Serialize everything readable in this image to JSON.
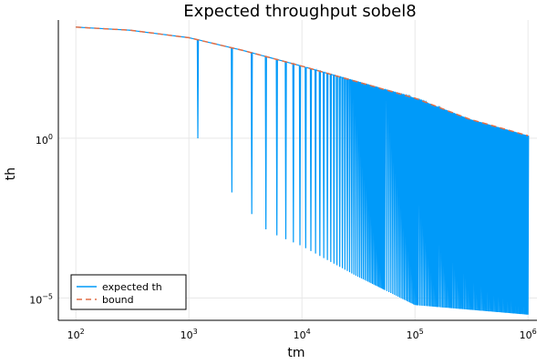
{
  "chart_data": {
    "type": "line",
    "title": "Expected throughput sobel8",
    "xlabel": "tm",
    "ylabel": "th",
    "x_scale": "log10",
    "y_scale": "log10",
    "xlim": [
      70,
      1200000
    ],
    "ylim": [
      2e-06,
      5000
    ],
    "x_ticks": [
      {
        "value": 100,
        "base": "10",
        "exp": "2"
      },
      {
        "value": 1000,
        "base": "10",
        "exp": "3"
      },
      {
        "value": 10000,
        "base": "10",
        "exp": "4"
      },
      {
        "value": 100000,
        "base": "10",
        "exp": "5"
      },
      {
        "value": 1000000,
        "base": "10",
        "exp": "6"
      }
    ],
    "y_ticks": [
      {
        "value": 1,
        "base": "10",
        "exp": "0"
      },
      {
        "value": 1e-05,
        "base": "10",
        "exp": "−5"
      }
    ],
    "grid": true,
    "legend_position": "bottom-left",
    "series": [
      {
        "name": "expected th",
        "color": "#009af9",
        "style": "solid",
        "envelope": [
          [
            100,
            3000
          ],
          [
            300,
            2400
          ],
          [
            1000,
            1400
          ],
          [
            3000,
            560
          ],
          [
            10000,
            180
          ],
          [
            30000,
            60
          ],
          [
            100000,
            18
          ],
          [
            300000,
            4
          ],
          [
            1000000,
            1.2
          ]
        ],
        "spike_period": 1200,
        "spike_min": [
          [
            1200,
            0.99
          ],
          [
            2400,
            0.02
          ],
          [
            5000,
            0.0012
          ],
          [
            10000,
            0.00042
          ],
          [
            30000,
            5e-05
          ],
          [
            100000,
            6e-06
          ],
          [
            1000000,
            3e-06
          ]
        ]
      },
      {
        "name": "bound",
        "color": "#e26f46",
        "style": "dashed",
        "points": [
          [
            100,
            3000
          ],
          [
            300,
            2400
          ],
          [
            1000,
            1400
          ],
          [
            3000,
            560
          ],
          [
            10000,
            180
          ],
          [
            30000,
            60
          ],
          [
            100000,
            18
          ],
          [
            300000,
            4
          ],
          [
            1000000,
            1.2
          ]
        ]
      }
    ]
  }
}
